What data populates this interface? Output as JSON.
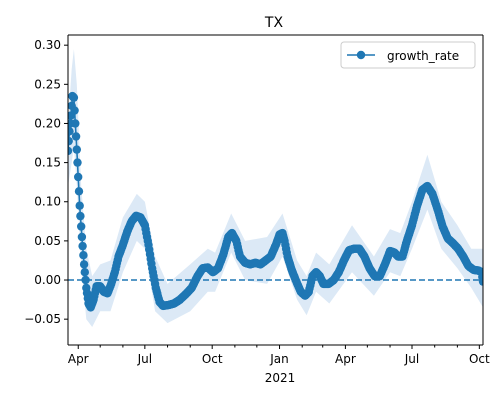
{
  "chart_data": {
    "type": "line",
    "title": "TX",
    "xlabel": "2021",
    "ylabel": "",
    "ylim": [
      -0.083,
      0.313
    ],
    "xlim": [
      "2020-03-18",
      "2021-10-06"
    ],
    "x_tick_labels": [
      {
        "date": "2020-04-01",
        "label": "Apr"
      },
      {
        "date": "2020-07-01",
        "label": "Jul"
      },
      {
        "date": "2020-10-01",
        "label": "Oct"
      },
      {
        "date": "2021-01-01",
        "label": "Jan"
      },
      {
        "date": "2021-04-01",
        "label": "Apr"
      },
      {
        "date": "2021-07-01",
        "label": "Jul"
      },
      {
        "date": "2021-10-01",
        "label": "Oct"
      }
    ],
    "x_minor_ticks": [
      "2020-05-01",
      "2020-06-01",
      "2020-08-01",
      "2020-09-01",
      "2020-11-01",
      "2020-12-01",
      "2021-02-01",
      "2021-03-01",
      "2021-05-01",
      "2021-06-01",
      "2021-08-01",
      "2021-09-01"
    ],
    "y_ticks": [
      -0.05,
      0.0,
      0.05,
      0.1,
      0.15,
      0.2,
      0.25,
      0.3
    ],
    "y_tick_labels": [
      "−0.05",
      "0.00",
      "0.05",
      "0.10",
      "0.15",
      "0.20",
      "0.25",
      "0.30"
    ],
    "reference_line": {
      "y": 0.0,
      "style": "dashed"
    },
    "legend": {
      "position": "top-right"
    },
    "grid": false,
    "colors": {
      "line": "#1f77b4",
      "band": "#dce9f6",
      "ref": "#1f77b4"
    },
    "series": [
      {
        "name": "growth_rate",
        "marker": "circle",
        "points": [
          [
            "2020-03-18",
            0.165
          ],
          [
            "2020-03-20",
            0.19
          ],
          [
            "2020-03-22",
            0.21
          ],
          [
            "2020-03-24",
            0.235
          ],
          [
            "2020-03-26",
            0.233
          ],
          [
            "2020-03-28",
            0.2
          ],
          [
            "2020-03-31",
            0.15
          ],
          [
            "2020-04-03",
            0.095
          ],
          [
            "2020-04-06",
            0.055
          ],
          [
            "2020-04-09",
            0.02
          ],
          [
            "2020-04-12",
            -0.01
          ],
          [
            "2020-04-15",
            -0.03
          ],
          [
            "2020-04-18",
            -0.035
          ],
          [
            "2020-04-22",
            -0.025
          ],
          [
            "2020-04-26",
            -0.008
          ],
          [
            "2020-05-01",
            -0.008
          ],
          [
            "2020-05-06",
            -0.015
          ],
          [
            "2020-05-11",
            -0.017
          ],
          [
            "2020-05-16",
            -0.005
          ],
          [
            "2020-05-21",
            0.01
          ],
          [
            "2020-05-26",
            0.03
          ],
          [
            "2020-06-01",
            0.045
          ],
          [
            "2020-06-07",
            0.062
          ],
          [
            "2020-06-13",
            0.075
          ],
          [
            "2020-06-19",
            0.082
          ],
          [
            "2020-06-25",
            0.08
          ],
          [
            "2020-07-01",
            0.07
          ],
          [
            "2020-07-06",
            0.045
          ],
          [
            "2020-07-11",
            0.015
          ],
          [
            "2020-07-16",
            -0.01
          ],
          [
            "2020-07-21",
            -0.028
          ],
          [
            "2020-07-26",
            -0.033
          ],
          [
            "2020-08-02",
            -0.032
          ],
          [
            "2020-08-10",
            -0.03
          ],
          [
            "2020-08-18",
            -0.025
          ],
          [
            "2020-08-26",
            -0.018
          ],
          [
            "2020-09-03",
            -0.01
          ],
          [
            "2020-09-11",
            0.005
          ],
          [
            "2020-09-18",
            0.015
          ],
          [
            "2020-09-25",
            0.016
          ],
          [
            "2020-10-02",
            0.01
          ],
          [
            "2020-10-09",
            0.015
          ],
          [
            "2020-10-16",
            0.032
          ],
          [
            "2020-10-23",
            0.055
          ],
          [
            "2020-10-28",
            0.06
          ],
          [
            "2020-11-03",
            0.05
          ],
          [
            "2020-11-08",
            0.03
          ],
          [
            "2020-11-15",
            0.022
          ],
          [
            "2020-11-22",
            0.02
          ],
          [
            "2020-11-29",
            0.022
          ],
          [
            "2020-12-06",
            0.02
          ],
          [
            "2020-12-13",
            0.025
          ],
          [
            "2020-12-20",
            0.03
          ],
          [
            "2020-12-27",
            0.045
          ],
          [
            "2021-01-01",
            0.058
          ],
          [
            "2021-01-05",
            0.06
          ],
          [
            "2021-01-08",
            0.05
          ],
          [
            "2021-01-12",
            0.03
          ],
          [
            "2021-01-18",
            0.012
          ],
          [
            "2021-01-24",
            -0.002
          ],
          [
            "2021-01-30",
            -0.015
          ],
          [
            "2021-02-05",
            -0.02
          ],
          [
            "2021-02-10",
            -0.015
          ],
          [
            "2021-02-15",
            0.005
          ],
          [
            "2021-02-20",
            0.01
          ],
          [
            "2021-02-25",
            0.005
          ],
          [
            "2021-03-02",
            -0.005
          ],
          [
            "2021-03-09",
            -0.005
          ],
          [
            "2021-03-16",
            0.0
          ],
          [
            "2021-03-23",
            0.01
          ],
          [
            "2021-03-30",
            0.025
          ],
          [
            "2021-04-06",
            0.038
          ],
          [
            "2021-04-13",
            0.04
          ],
          [
            "2021-04-20",
            0.04
          ],
          [
            "2021-04-27",
            0.03
          ],
          [
            "2021-05-04",
            0.015
          ],
          [
            "2021-05-11",
            0.005
          ],
          [
            "2021-05-18",
            0.005
          ],
          [
            "2021-05-25",
            0.02
          ],
          [
            "2021-06-01",
            0.037
          ],
          [
            "2021-06-07",
            0.035
          ],
          [
            "2021-06-12",
            0.03
          ],
          [
            "2021-06-18",
            0.03
          ],
          [
            "2021-06-24",
            0.05
          ],
          [
            "2021-07-01",
            0.07
          ],
          [
            "2021-07-08",
            0.095
          ],
          [
            "2021-07-15",
            0.115
          ],
          [
            "2021-07-22",
            0.12
          ],
          [
            "2021-07-29",
            0.11
          ],
          [
            "2021-08-05",
            0.09
          ],
          [
            "2021-08-12",
            0.068
          ],
          [
            "2021-08-19",
            0.053
          ],
          [
            "2021-08-26",
            0.047
          ],
          [
            "2021-09-02",
            0.04
          ],
          [
            "2021-09-09",
            0.03
          ],
          [
            "2021-09-16",
            0.018
          ],
          [
            "2021-09-23",
            0.013
          ],
          [
            "2021-09-30",
            0.012
          ],
          [
            "2021-10-04",
            0.01
          ],
          [
            "2021-10-06",
            -0.002
          ]
        ],
        "band": [
          [
            "2020-03-18",
            0.12,
            0.2
          ],
          [
            "2020-03-23",
            0.15,
            0.27
          ],
          [
            "2020-03-26",
            0.17,
            0.295
          ],
          [
            "2020-03-30",
            0.12,
            0.25
          ],
          [
            "2020-04-05",
            0.02,
            0.12
          ],
          [
            "2020-04-12",
            -0.05,
            0.04
          ],
          [
            "2020-04-20",
            -0.06,
            0.005
          ],
          [
            "2020-05-01",
            -0.04,
            0.02
          ],
          [
            "2020-05-15",
            -0.04,
            0.025
          ],
          [
            "2020-06-01",
            0.01,
            0.08
          ],
          [
            "2020-06-20",
            0.05,
            0.11
          ],
          [
            "2020-07-01",
            0.04,
            0.1
          ],
          [
            "2020-07-15",
            -0.04,
            0.03
          ],
          [
            "2020-08-01",
            -0.055,
            -0.005
          ],
          [
            "2020-09-01",
            -0.04,
            0.02
          ],
          [
            "2020-09-25",
            -0.015,
            0.04
          ],
          [
            "2020-10-05",
            -0.015,
            0.035
          ],
          [
            "2020-10-27",
            0.035,
            0.085
          ],
          [
            "2020-11-15",
            0.0,
            0.05
          ],
          [
            "2020-12-15",
            -0.005,
            0.055
          ],
          [
            "2021-01-05",
            0.03,
            0.085
          ],
          [
            "2021-01-25",
            -0.025,
            0.025
          ],
          [
            "2021-02-07",
            -0.045,
            0.005
          ],
          [
            "2021-02-20",
            -0.015,
            0.035
          ],
          [
            "2021-03-10",
            -0.03,
            0.02
          ],
          [
            "2021-04-10",
            0.01,
            0.07
          ],
          [
            "2021-05-10",
            -0.02,
            0.03
          ],
          [
            "2021-06-01",
            0.01,
            0.065
          ],
          [
            "2021-06-15",
            0.005,
            0.06
          ],
          [
            "2021-07-01",
            0.04,
            0.1
          ],
          [
            "2021-07-22",
            0.09,
            0.16
          ],
          [
            "2021-08-10",
            0.04,
            0.1
          ],
          [
            "2021-09-01",
            0.015,
            0.07
          ],
          [
            "2021-09-20",
            -0.01,
            0.04
          ],
          [
            "2021-10-06",
            -0.035,
            0.04
          ]
        ]
      }
    ]
  }
}
